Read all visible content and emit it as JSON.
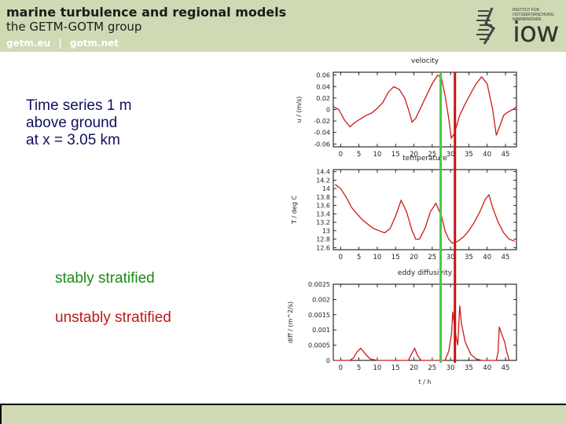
{
  "header": {
    "title": "marine turbulence and regional models",
    "subtitle": "the GETM-GOTM group",
    "links": [
      "getm.eu",
      "|",
      "gotm.net"
    ],
    "logo_lines": [
      "INSTITUT FÜR",
      "OSTSEEFORSCHUNG",
      "WARNEMÜNDE"
    ],
    "logo_word": "iow"
  },
  "description": {
    "line1": "Time series 1 m",
    "line2": "above ground",
    "line3": "at x = 3.05 km"
  },
  "legend": {
    "stable": "stably stratified",
    "unstable": "unstably stratified"
  },
  "colors": {
    "header_bg": "#cfd9b4",
    "curve": "#cc1a1a",
    "stable_line": "#44cc44",
    "unstable_line": "#cc1111"
  },
  "chart_data": [
    {
      "type": "line",
      "title": "velocity",
      "xlabel": "",
      "ylabel": "u / (m/s)",
      "xlim": [
        -2,
        48
      ],
      "ylim": [
        -0.065,
        0.065
      ],
      "xticks": [
        0,
        5,
        10,
        15,
        20,
        25,
        30,
        35,
        40,
        45
      ],
      "yticks": [
        0.06,
        0.04,
        0.02,
        0,
        -0.02,
        -0.04,
        -0.06
      ],
      "ytick_labels": [
        "0.06",
        "0.04",
        "0.02",
        "0",
        "-0.02",
        "-0.04",
        "-0.06"
      ],
      "series": [
        {
          "x": [
            -2,
            -0.5,
            1,
            2.5,
            4,
            5.5,
            7,
            8.5,
            10,
            11.5,
            13,
            14.5,
            16,
            17.5,
            19,
            19.5,
            20.5,
            22,
            23.5,
            25,
            26.5,
            27.5,
            28.5,
            29.5,
            30.2,
            31,
            32.5,
            34,
            35.5,
            37,
            38.5,
            40,
            41.5,
            42.5,
            43.5,
            44.5,
            45.5,
            47,
            48
          ],
          "y": [
            0.005,
            0.0,
            -0.018,
            -0.03,
            -0.022,
            -0.016,
            -0.01,
            -0.006,
            0.002,
            0.012,
            0.03,
            0.04,
            0.035,
            0.02,
            -0.01,
            -0.022,
            -0.015,
            0.005,
            0.025,
            0.045,
            0.06,
            0.055,
            0.025,
            -0.015,
            -0.05,
            -0.042,
            -0.01,
            0.01,
            0.028,
            0.045,
            0.057,
            0.045,
            0.0,
            -0.045,
            -0.028,
            -0.01,
            -0.005,
            0.0,
            0.005
          ]
        }
      ]
    },
    {
      "type": "line",
      "title": "temperature",
      "xlabel": "",
      "ylabel": "T / deg C",
      "xlim": [
        -2,
        48
      ],
      "ylim": [
        12.55,
        14.45
      ],
      "xticks": [
        0,
        5,
        10,
        15,
        20,
        25,
        30,
        35,
        40,
        45
      ],
      "yticks": [
        14.4,
        14.2,
        14,
        13.8,
        13.6,
        13.4,
        13.2,
        13,
        12.8,
        12.6
      ],
      "ytick_labels": [
        "14.4",
        "14.2",
        "14",
        "13.8",
        "13.6",
        "13.4",
        "13.2",
        "13",
        "12.8",
        "12.6"
      ],
      "series": [
        {
          "x": [
            -1.5,
            0,
            1.5,
            3,
            4.5,
            6,
            7.5,
            9,
            10.5,
            12,
            13.5,
            15,
            16.5,
            18,
            19.5,
            20.5,
            21.5,
            23,
            24.5,
            26,
            27.5,
            28.5,
            29.5,
            30.5,
            32,
            33.5,
            35,
            36.5,
            38,
            39.5,
            40.5,
            41.5,
            43,
            44.5,
            46,
            47.5
          ],
          "y": [
            14.1,
            14.0,
            13.8,
            13.55,
            13.4,
            13.25,
            13.15,
            13.05,
            13.0,
            12.95,
            13.05,
            13.35,
            13.72,
            13.45,
            13.0,
            12.8,
            12.8,
            13.05,
            13.45,
            13.65,
            13.35,
            13.0,
            12.8,
            12.7,
            12.75,
            12.85,
            13.0,
            13.2,
            13.45,
            13.75,
            13.85,
            13.55,
            13.2,
            12.95,
            12.8,
            12.75
          ]
        }
      ]
    },
    {
      "type": "line",
      "title": "eddy diffusivity",
      "xlabel": "t / h",
      "ylabel": "diff / (m^2/s)",
      "xlim": [
        -2,
        48
      ],
      "ylim": [
        0,
        0.0025
      ],
      "xticks": [
        0,
        5,
        10,
        15,
        20,
        25,
        30,
        35,
        40,
        45
      ],
      "yticks": [
        0.0025,
        0.002,
        0.0015,
        0.001,
        0.0005,
        0
      ],
      "ytick_labels": [
        "0.0025",
        "0.002",
        "0.0015",
        "0.001",
        "0.0005",
        "0"
      ],
      "series": [
        {
          "x": [
            -2,
            2.5,
            3.5,
            4.5,
            5.5,
            6.5,
            8,
            10,
            18.5,
            19.3,
            20.2,
            21,
            22,
            28.5,
            29.5,
            30.3,
            30.6,
            31,
            31.5,
            32,
            32.5,
            33,
            34,
            35.5,
            37,
            38.5,
            40,
            42.5,
            43,
            43.3,
            44,
            44.8,
            45.3,
            46
          ],
          "y": [
            0,
            0,
            8e-05,
            0.00028,
            0.0004,
            0.00025,
            5e-05,
            0,
            0,
            0.0002,
            0.0004,
            0.00015,
            0,
            0,
            0.0003,
            0.0009,
            0.0016,
            0.0012,
            0.0008,
            0.0005,
            0.0018,
            0.0012,
            0.0006,
            0.0002,
            5e-05,
            0,
            0,
            0,
            0.0003,
            0.0011,
            0.00085,
            0.0006,
            0.0003,
            0
          ]
        }
      ]
    }
  ]
}
